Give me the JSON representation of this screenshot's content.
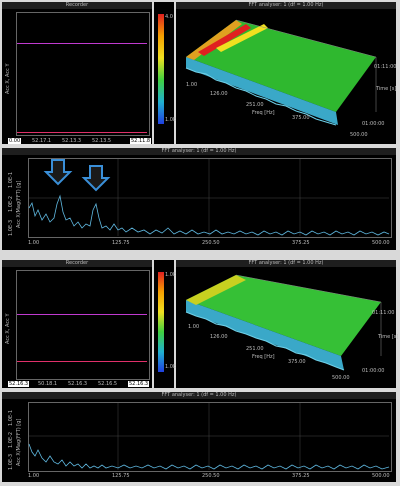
{
  "screen1": {
    "recorder": {
      "title": "Recorder",
      "y_label": "Acc X, Acc Y",
      "x_ticks": [
        "0.00",
        "52.17.1",
        "52.13.3",
        "52.13.5",
        "52.11.7"
      ],
      "x_start_box": "0.00",
      "x_end_box": "52.11.8",
      "colors": {
        "line1": "#c03ad0",
        "line2": "#e0306a"
      }
    },
    "colorbar": {
      "top": "4.0",
      "bottom": "1.0E-5"
    },
    "fft3d": {
      "title": "FFT analyser: 1 (df = 1.00 Hz)",
      "freq_ticks": [
        "1.00",
        "126.00",
        "251.00",
        "375.00",
        "500.00"
      ],
      "x_label": "Freq [Hz]",
      "time_ticks": [
        "01:11:00",
        "01:00:00"
      ],
      "time_label": "Time [s]"
    },
    "fft2d": {
      "title": "FFT analyser: 1 (df = 1.00 Hz)",
      "y_label": "Acc X/Mag(FFT) [g]",
      "y_ticks": [
        "1.0E-1",
        "1.0E-2",
        "1.0E-3"
      ],
      "x_ticks": [
        "1.00",
        "125.75",
        "250.50",
        "375.25",
        "500.00"
      ],
      "arrow_color": "#3a8fd8"
    }
  },
  "screen2": {
    "recorder": {
      "title": "Recorder",
      "y_label": "Acc X, Acc Y",
      "x_ticks": [
        "0.00",
        "50.18.1",
        "52.16.3",
        "52.16.5",
        "52.16.7"
      ],
      "x_start_box": "52.16.3",
      "x_end_box": "52.16.3",
      "colors": {
        "line1": "#c03ad0",
        "line2": "#e0306a"
      }
    },
    "colorbar": {
      "top": "1.0E-4",
      "bottom": "1.0E-6"
    },
    "fft3d": {
      "title": "FFT analyser: 1 (df = 1.00 Hz)",
      "freq_ticks": [
        "1.00",
        "126.00",
        "251.00",
        "375.00",
        "500.00"
      ],
      "x_label": "Freq [Hz]",
      "time_ticks": [
        "01:11:00",
        "01:00:00"
      ],
      "time_label": "Time [s]"
    },
    "fft2d": {
      "title": "FFT analyser: 1 (df = 1.00 Hz)",
      "y_label": "Acc X/Mag(FFT) [g]",
      "y_ticks": [
        "1.0E-1",
        "1.0E-2",
        "1.0E-3"
      ],
      "x_ticks": [
        "1.00",
        "125.75",
        "250.50",
        "375.25",
        "500.00"
      ]
    }
  }
}
